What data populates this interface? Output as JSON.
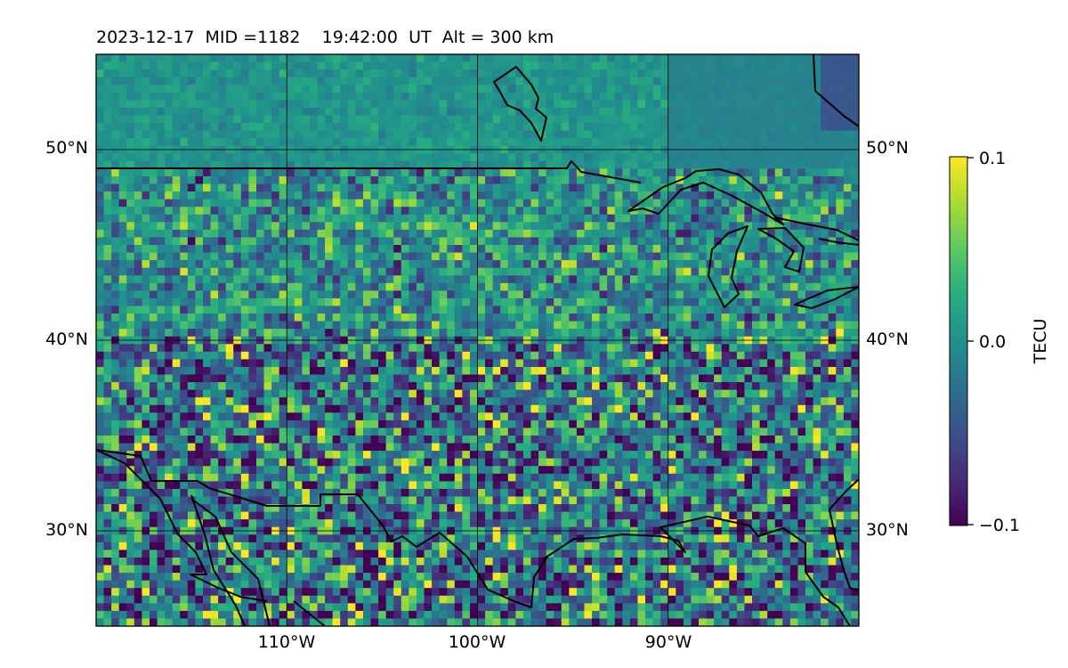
{
  "header": {
    "date": "2023-12-17",
    "mid": "MID =1182",
    "time": "19:42:00",
    "ut": "UT",
    "alt": "Alt = 300 km"
  },
  "map": {
    "lon_range": [
      -120,
      -80
    ],
    "lat_range": [
      25,
      55
    ],
    "lat_ticks": [
      {
        "value": 50,
        "label": "50°N"
      },
      {
        "value": 40,
        "label": "40°N"
      },
      {
        "value": 30,
        "label": "30°N"
      }
    ],
    "lon_ticks": [
      {
        "value": -110,
        "label": "110°W"
      },
      {
        "value": -100,
        "label": "100°W"
      },
      {
        "value": -90,
        "label": "90°W"
      }
    ],
    "grid": true
  },
  "colorbar": {
    "label": "TECU",
    "ticks": [
      {
        "value": 0.1,
        "label": "0.1"
      },
      {
        "value": 0.0,
        "label": "0.0"
      },
      {
        "value": -0.1,
        "label": "−0.1"
      }
    ],
    "range": [
      -0.1,
      0.1
    ],
    "colormap": "viridis",
    "colors": {
      "low": "#440154",
      "mid": "#21908d",
      "high": "#fde725"
    }
  },
  "chart_data": {
    "type": "heatmap",
    "colorbar_label": "TECU",
    "vmin": -0.1,
    "vmax": 0.1,
    "x_range": [
      -120,
      -80
    ],
    "y_range": [
      25,
      55
    ]
  }
}
